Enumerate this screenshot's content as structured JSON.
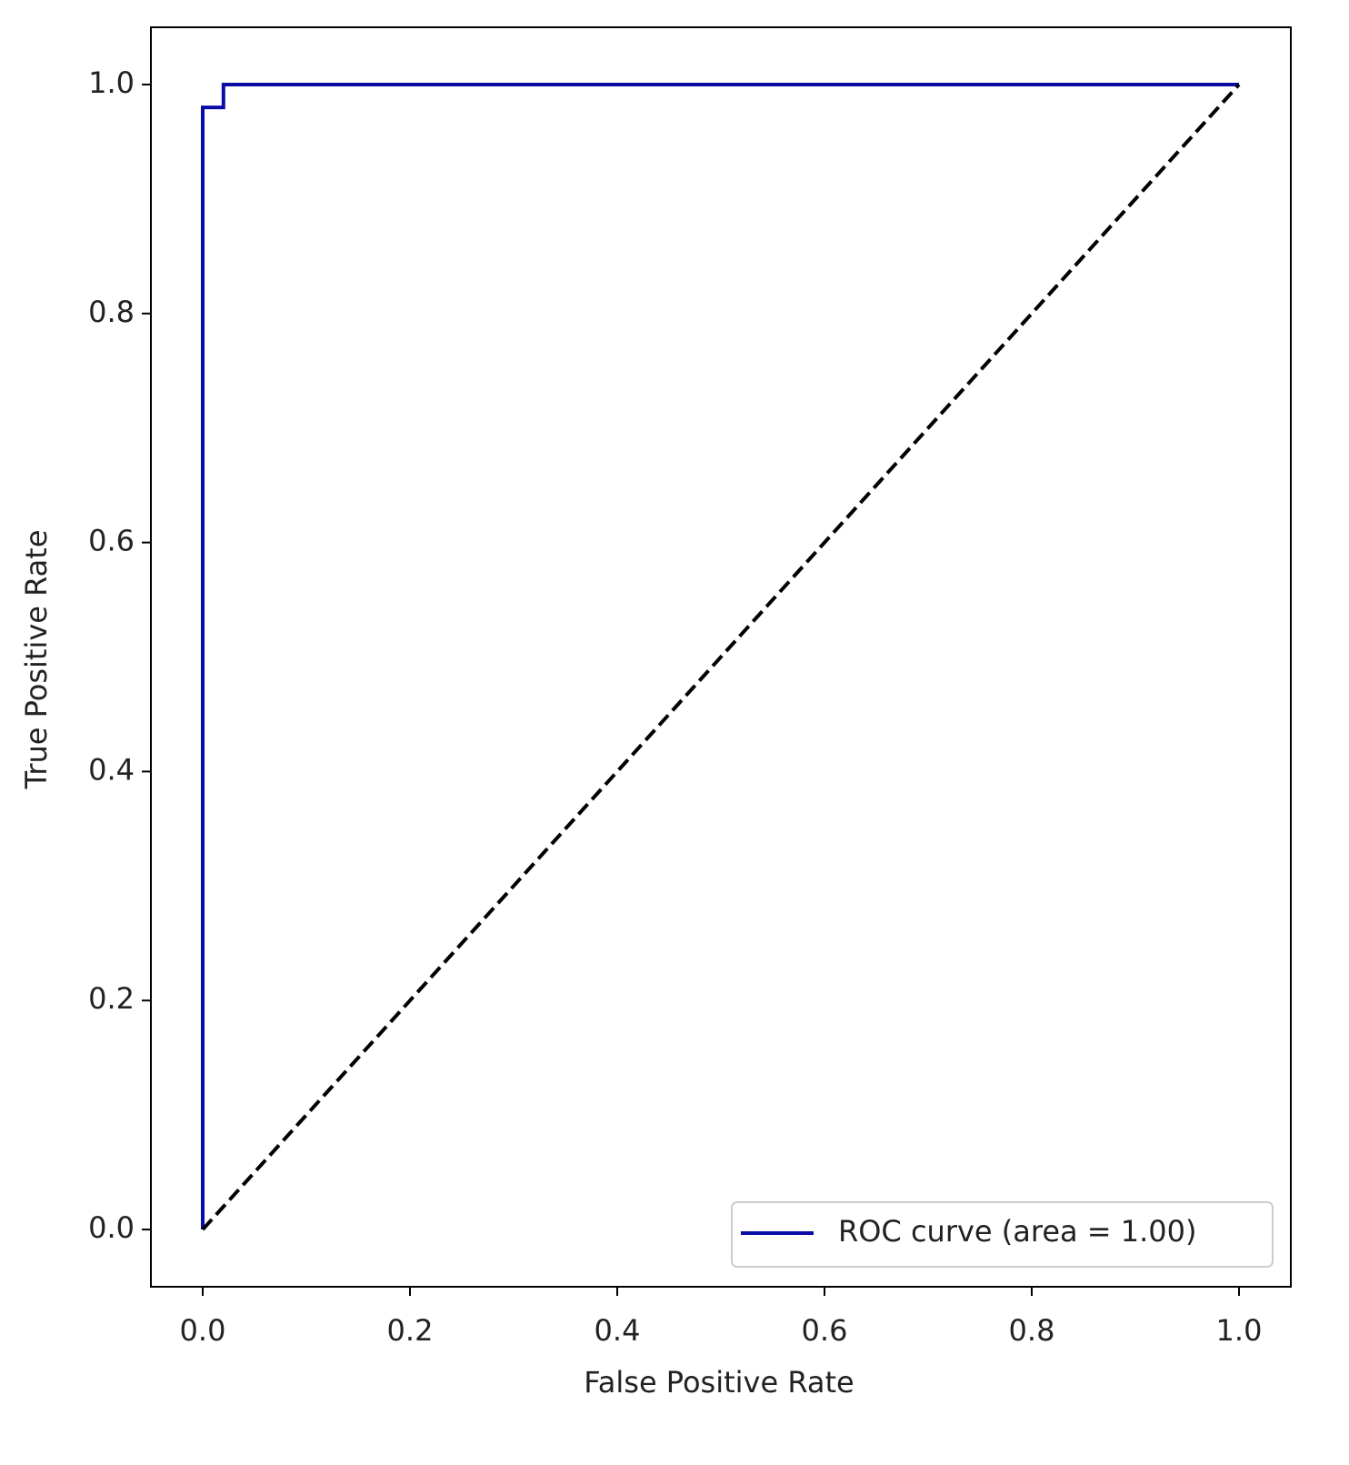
{
  "chart_data": {
    "type": "line",
    "xlabel": "False Positive Rate",
    "ylabel": "True Positive Rate",
    "series": [
      {
        "name": "ROC curve (area = 1.00)",
        "color": "#0b0ba6",
        "linestyle": "solid",
        "x": [
          0,
          0,
          0.02,
          0.02,
          1
        ],
        "values": [
          0,
          0.98,
          0.98,
          1,
          1
        ]
      },
      {
        "color": "#000000",
        "linestyle": "dashed",
        "x": [
          0,
          1
        ],
        "values": [
          0,
          1
        ]
      }
    ],
    "xlim": [
      -0.05,
      1.05
    ],
    "ylim": [
      -0.05,
      1.05
    ],
    "xticks": [
      {
        "value": 0,
        "label": "0.0"
      },
      0.2,
      0.4,
      0.6,
      0.8,
      {
        "value": 1,
        "label": "1.0"
      }
    ],
    "yticks": [
      {
        "value": 0,
        "label": "0.0"
      },
      0.2,
      0.4,
      0.6,
      0.8,
      {
        "value": 1,
        "label": "1.0"
      }
    ],
    "legend": "lower right"
  }
}
